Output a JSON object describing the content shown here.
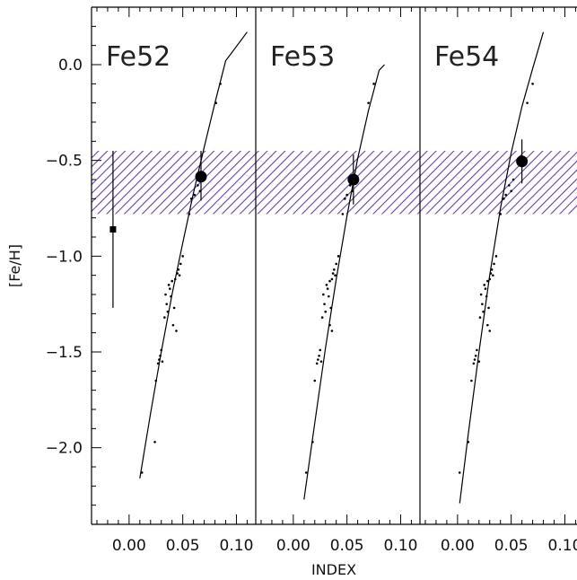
{
  "chart_data": {
    "type": "scatter",
    "xlabel": "INDEX",
    "ylabel": "[Fe/H]",
    "ylim": [
      -2.4,
      0.3
    ],
    "x_ticks": [
      "0.00",
      "0.05",
      "0.10"
    ],
    "y_ticks": [
      {
        "value": 0.0,
        "label": "0.0"
      },
      {
        "value": -0.5,
        "label": "-0.5"
      },
      {
        "value": -1.0,
        "label": "-1.0"
      },
      {
        "value": -1.5,
        "label": "-1.5"
      },
      {
        "value": -2.0,
        "label": "-2.0"
      }
    ],
    "shaded_band": {
      "y_min": -0.78,
      "y_max": -0.45,
      "color": "#6a3fb0"
    },
    "reference_point": {
      "x": -0.015,
      "y": -0.86,
      "y_low": -1.27,
      "y_high": -0.45
    },
    "panels": [
      {
        "label": "Fe52",
        "xlim": [
          -0.035,
          0.118
        ],
        "fit_curve": [
          [
            0.01,
            -2.16
          ],
          [
            0.02,
            -1.82
          ],
          [
            0.03,
            -1.5
          ],
          [
            0.04,
            -1.2
          ],
          [
            0.05,
            -0.93
          ],
          [
            0.06,
            -0.67
          ],
          [
            0.07,
            -0.43
          ],
          [
            0.08,
            -0.2
          ],
          [
            0.09,
            0.02
          ],
          [
            0.11,
            0.17
          ]
        ],
        "highlight": {
          "x": 0.067,
          "y": -0.585,
          "y_low": -0.71,
          "y_high": -0.45
        },
        "points": [
          [
            0.012,
            -2.13
          ],
          [
            0.024,
            -1.97
          ],
          [
            0.025,
            -1.65
          ],
          [
            0.027,
            -1.56
          ],
          [
            0.028,
            -1.54
          ],
          [
            0.029,
            -1.52
          ],
          [
            0.03,
            -1.49
          ],
          [
            0.031,
            -1.55
          ],
          [
            0.033,
            -1.32
          ],
          [
            0.034,
            -1.2
          ],
          [
            0.035,
            -1.25
          ],
          [
            0.036,
            -1.29
          ],
          [
            0.037,
            -1.15
          ],
          [
            0.038,
            -1.17
          ],
          [
            0.039,
            -1.21
          ],
          [
            0.04,
            -1.13
          ],
          [
            0.041,
            -1.36
          ],
          [
            0.042,
            -1.27
          ],
          [
            0.043,
            -1.12
          ],
          [
            0.044,
            -1.39
          ],
          [
            0.045,
            -1.09
          ],
          [
            0.046,
            -1.07
          ],
          [
            0.047,
            -1.1
          ],
          [
            0.048,
            -1.04
          ],
          [
            0.05,
            -1.0
          ],
          [
            0.056,
            -0.78
          ],
          [
            0.058,
            -0.7
          ],
          [
            0.061,
            -0.68
          ],
          [
            0.064,
            -0.63
          ],
          [
            0.066,
            -0.66
          ],
          [
            0.07,
            -0.6
          ],
          [
            0.081,
            -0.2
          ],
          [
            0.085,
            -0.1
          ]
        ]
      },
      {
        "label": "Fe53",
        "xlim": [
          -0.035,
          0.118
        ],
        "fit_curve": [
          [
            0.01,
            -2.27
          ],
          [
            0.02,
            -1.87
          ],
          [
            0.03,
            -1.48
          ],
          [
            0.04,
            -1.12
          ],
          [
            0.05,
            -0.79
          ],
          [
            0.06,
            -0.49
          ],
          [
            0.07,
            -0.24
          ],
          [
            0.08,
            -0.03
          ],
          [
            0.085,
            0.0
          ]
        ],
        "highlight": {
          "x": 0.056,
          "y": -0.6,
          "y_low": -0.73,
          "y_high": -0.47
        },
        "points": [
          [
            0.012,
            -2.13
          ],
          [
            0.018,
            -1.97
          ],
          [
            0.02,
            -1.65
          ],
          [
            0.022,
            -1.56
          ],
          [
            0.023,
            -1.54
          ],
          [
            0.024,
            -1.52
          ],
          [
            0.025,
            -1.49
          ],
          [
            0.026,
            -1.55
          ],
          [
            0.027,
            -1.32
          ],
          [
            0.028,
            -1.2
          ],
          [
            0.029,
            -1.25
          ],
          [
            0.03,
            -1.29
          ],
          [
            0.031,
            -1.15
          ],
          [
            0.032,
            -1.17
          ],
          [
            0.033,
            -1.21
          ],
          [
            0.034,
            -1.13
          ],
          [
            0.034,
            -1.36
          ],
          [
            0.035,
            -1.27
          ],
          [
            0.036,
            -1.12
          ],
          [
            0.036,
            -1.39
          ],
          [
            0.037,
            -1.09
          ],
          [
            0.038,
            -1.07
          ],
          [
            0.039,
            -1.1
          ],
          [
            0.04,
            -1.04
          ],
          [
            0.042,
            -1.0
          ],
          [
            0.046,
            -0.78
          ],
          [
            0.048,
            -0.7
          ],
          [
            0.05,
            -0.68
          ],
          [
            0.053,
            -0.63
          ],
          [
            0.055,
            -0.66
          ],
          [
            0.058,
            -0.6
          ],
          [
            0.07,
            -0.2
          ],
          [
            0.075,
            -0.1
          ]
        ]
      },
      {
        "label": "Fe54",
        "xlim": [
          -0.035,
          0.118
        ],
        "fit_curve": [
          [
            0.002,
            -2.29
          ],
          [
            0.01,
            -1.93
          ],
          [
            0.02,
            -1.5
          ],
          [
            0.03,
            -1.1
          ],
          [
            0.04,
            -0.75
          ],
          [
            0.05,
            -0.46
          ],
          [
            0.06,
            -0.22
          ],
          [
            0.07,
            -0.02
          ],
          [
            0.08,
            0.17
          ]
        ],
        "highlight": {
          "x": 0.06,
          "y": -0.505,
          "y_low": -0.62,
          "y_high": -0.39
        },
        "points": [
          [
            0.002,
            -2.13
          ],
          [
            0.01,
            -1.97
          ],
          [
            0.013,
            -1.65
          ],
          [
            0.015,
            -1.56
          ],
          [
            0.016,
            -1.54
          ],
          [
            0.017,
            -1.52
          ],
          [
            0.018,
            -1.49
          ],
          [
            0.02,
            -1.55
          ],
          [
            0.021,
            -1.32
          ],
          [
            0.022,
            -1.2
          ],
          [
            0.023,
            -1.25
          ],
          [
            0.024,
            -1.29
          ],
          [
            0.025,
            -1.15
          ],
          [
            0.026,
            -1.17
          ],
          [
            0.027,
            -1.21
          ],
          [
            0.028,
            -1.13
          ],
          [
            0.028,
            -1.36
          ],
          [
            0.029,
            -1.27
          ],
          [
            0.03,
            -1.12
          ],
          [
            0.03,
            -1.39
          ],
          [
            0.031,
            -1.09
          ],
          [
            0.032,
            -1.07
          ],
          [
            0.033,
            -1.1
          ],
          [
            0.034,
            -1.04
          ],
          [
            0.036,
            -1.0
          ],
          [
            0.04,
            -0.78
          ],
          [
            0.043,
            -0.7
          ],
          [
            0.045,
            -0.68
          ],
          [
            0.048,
            -0.63
          ],
          [
            0.05,
            -0.66
          ],
          [
            0.052,
            -0.6
          ],
          [
            0.065,
            -0.2
          ],
          [
            0.07,
            -0.1
          ]
        ]
      }
    ]
  }
}
